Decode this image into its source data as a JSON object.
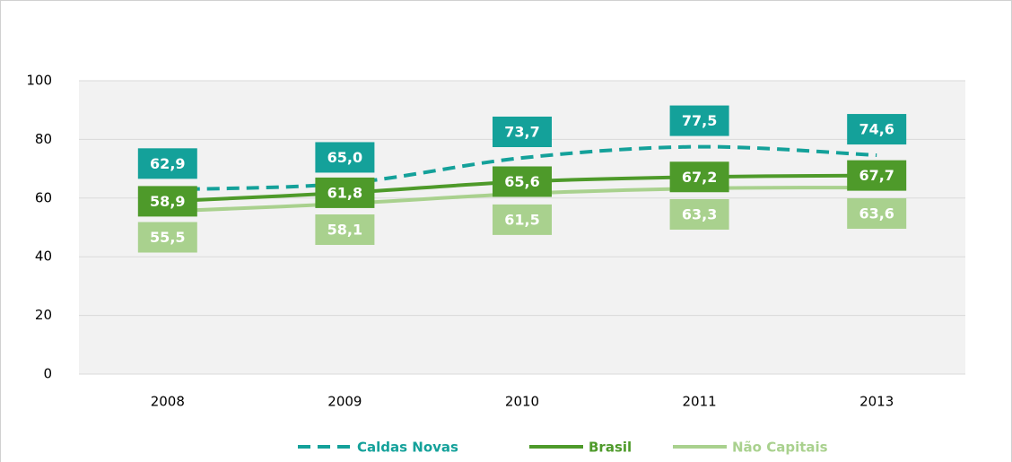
{
  "chart_data": {
    "type": "line",
    "categories": [
      "2008",
      "2009",
      "2010",
      "2011",
      "2013"
    ],
    "series": [
      {
        "name": "Caldas Novas",
        "color": "#14a19a",
        "dashed": true,
        "label_position": "above",
        "values": [
          62.9,
          65.0,
          73.7,
          77.5,
          74.6
        ],
        "value_labels": [
          "62,9",
          "65,0",
          "73,7",
          "77,5",
          "74,6"
        ]
      },
      {
        "name": "Brasil",
        "color": "#4e9a2a",
        "dashed": false,
        "label_position": "center",
        "values": [
          58.9,
          61.8,
          65.6,
          67.2,
          67.7
        ],
        "value_labels": [
          "58,9",
          "61,8",
          "65,6",
          "67,2",
          "67,7"
        ]
      },
      {
        "name": "Não Capitais",
        "color": "#a9d18e",
        "dashed": false,
        "label_position": "below",
        "values": [
          55.5,
          58.1,
          61.5,
          63.3,
          63.6
        ],
        "value_labels": [
          "55,5",
          "58,1",
          "61,5",
          "63,3",
          "63,6"
        ]
      }
    ],
    "ylim": [
      0,
      100
    ],
    "yticks": [
      0,
      20,
      40,
      60,
      80,
      100
    ],
    "grid": true,
    "legend": "bottom"
  }
}
